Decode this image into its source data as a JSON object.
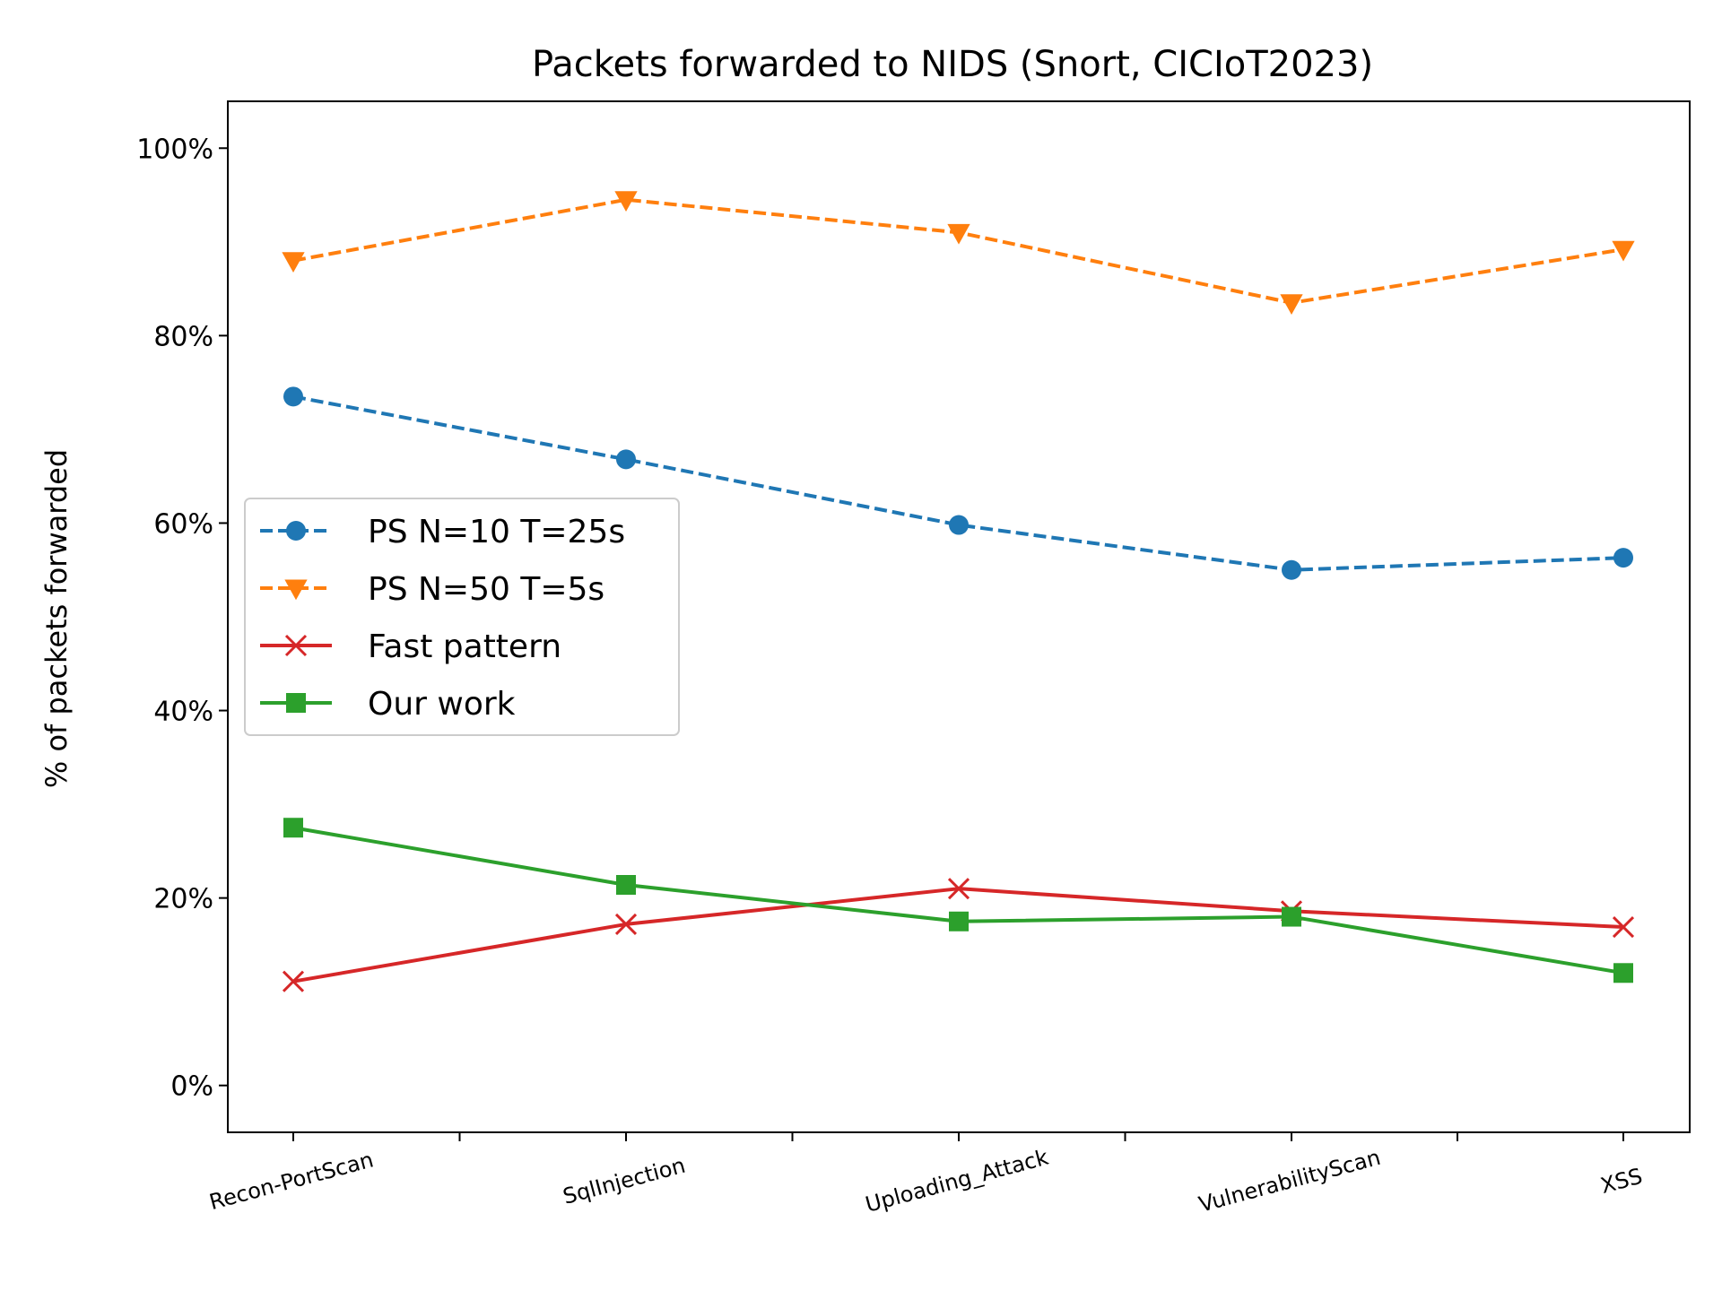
{
  "chart_data": {
    "type": "line",
    "title": "Packets forwarded to NIDS (Snort, CICIoT2023)",
    "xlabel": "",
    "ylabel": "% of packets forwarded",
    "categories": [
      "Recon-PortScan",
      "SqlInjection",
      "Uploading_Attack",
      "VulnerabilityScan",
      "XSS"
    ],
    "ylim": [
      -5,
      105
    ],
    "yticks": [
      0,
      20,
      40,
      60,
      80,
      100
    ],
    "ytick_labels": [
      "0%",
      "20%",
      "40%",
      "60%",
      "80%",
      "100%"
    ],
    "grid": false,
    "legend_position": "center-left",
    "series": [
      {
        "name": "PS N=10 T=25s",
        "values": [
          73.5,
          66.8,
          59.8,
          55.0,
          56.3
        ],
        "color": "#1f77b4",
        "dash": "dashed",
        "marker": "circle"
      },
      {
        "name": "PS N=50 T=5s",
        "values": [
          88.0,
          94.5,
          91.0,
          83.5,
          89.2
        ],
        "color": "#ff7f0e",
        "dash": "dashed",
        "marker": "triangle-down"
      },
      {
        "name": "Fast pattern",
        "values": [
          11.1,
          17.2,
          21.0,
          18.6,
          16.9
        ],
        "color": "#d62728",
        "dash": "solid",
        "marker": "x"
      },
      {
        "name": "Our work",
        "values": [
          27.5,
          21.4,
          17.5,
          18.0,
          12.0
        ],
        "color": "#2ca02c",
        "dash": "solid",
        "marker": "square"
      }
    ]
  }
}
